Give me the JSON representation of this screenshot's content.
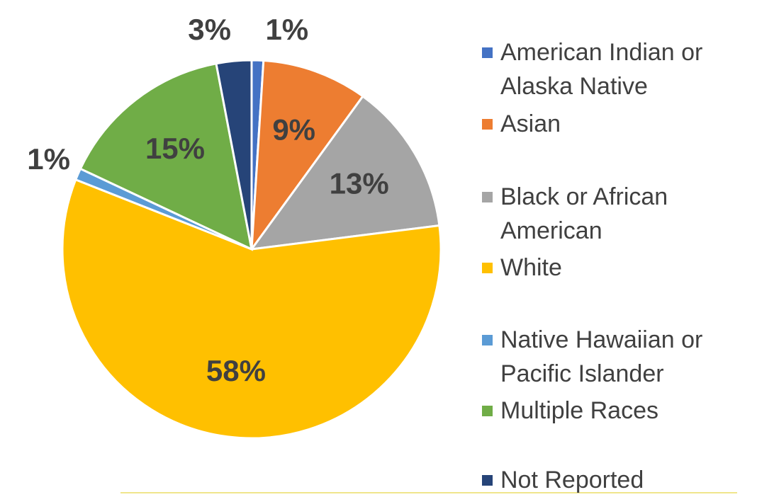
{
  "chart_data": {
    "type": "pie",
    "categories": [
      "American Indian or Alaska Native",
      "Asian",
      "Black or African American",
      "White",
      "Native Hawaiian or Pacific Islander",
      "Multiple Races",
      "Not Reported"
    ],
    "values": [
      1,
      9,
      13,
      58,
      1,
      15,
      3
    ],
    "value_labels": [
      "1%",
      "9%",
      "13%",
      "58%",
      "1%",
      "15%",
      "3%"
    ],
    "colors": [
      "#4472c4",
      "#ed7d31",
      "#a5a5a5",
      "#ffc000",
      "#5b9bd5",
      "#70ad47",
      "#264478"
    ],
    "legend": "right"
  }
}
